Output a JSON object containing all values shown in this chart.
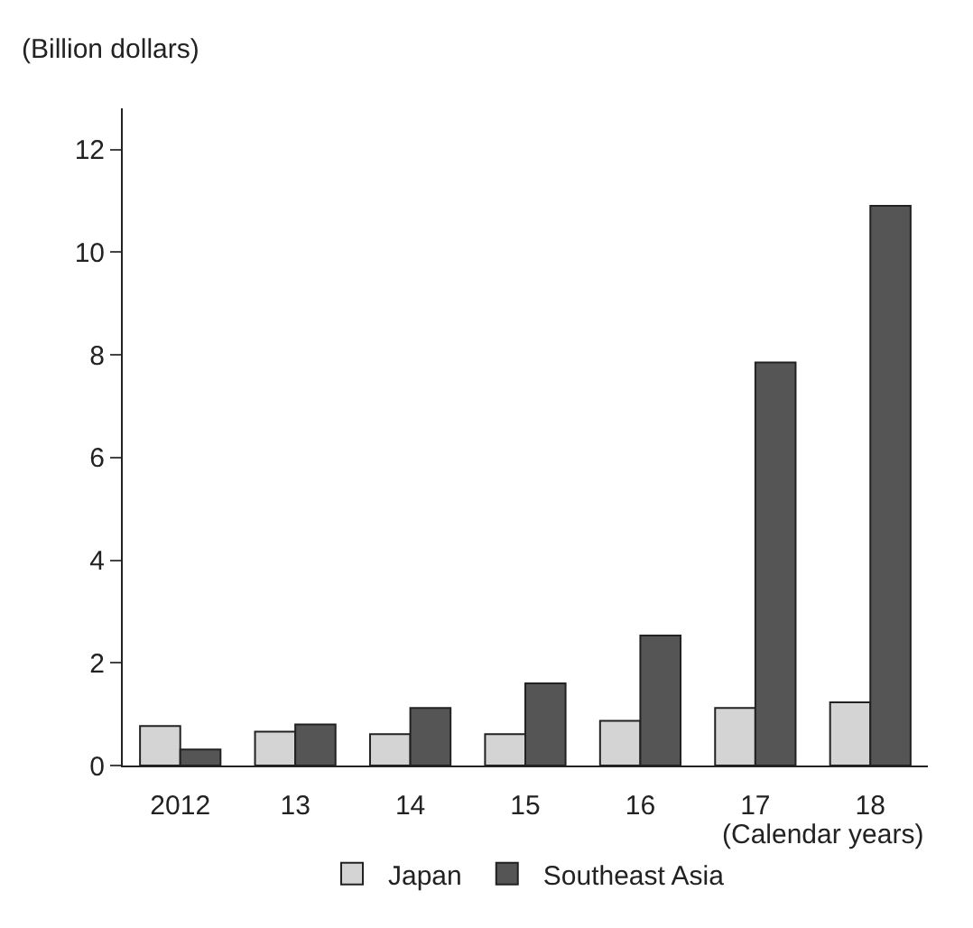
{
  "chart_data": {
    "type": "bar",
    "ylabel": "(Billion dollars)",
    "xlabel": "(Calendar years)",
    "categories": [
      "2012",
      "13",
      "14",
      "15",
      "16",
      "17",
      "18"
    ],
    "series": [
      {
        "name": "Japan",
        "color": "#d4d4d4",
        "values": [
          0.77,
          0.66,
          0.61,
          0.61,
          0.87,
          1.12,
          1.23
        ]
      },
      {
        "name": "Southeast Asia",
        "color": "#555555",
        "values": [
          0.31,
          0.8,
          1.12,
          1.6,
          2.53,
          7.85,
          10.9
        ]
      }
    ],
    "ylim": [
      0,
      12.8
    ],
    "yticks": [
      0,
      2,
      4,
      6,
      8,
      10,
      12
    ],
    "grid": false,
    "legend": "bottom"
  }
}
